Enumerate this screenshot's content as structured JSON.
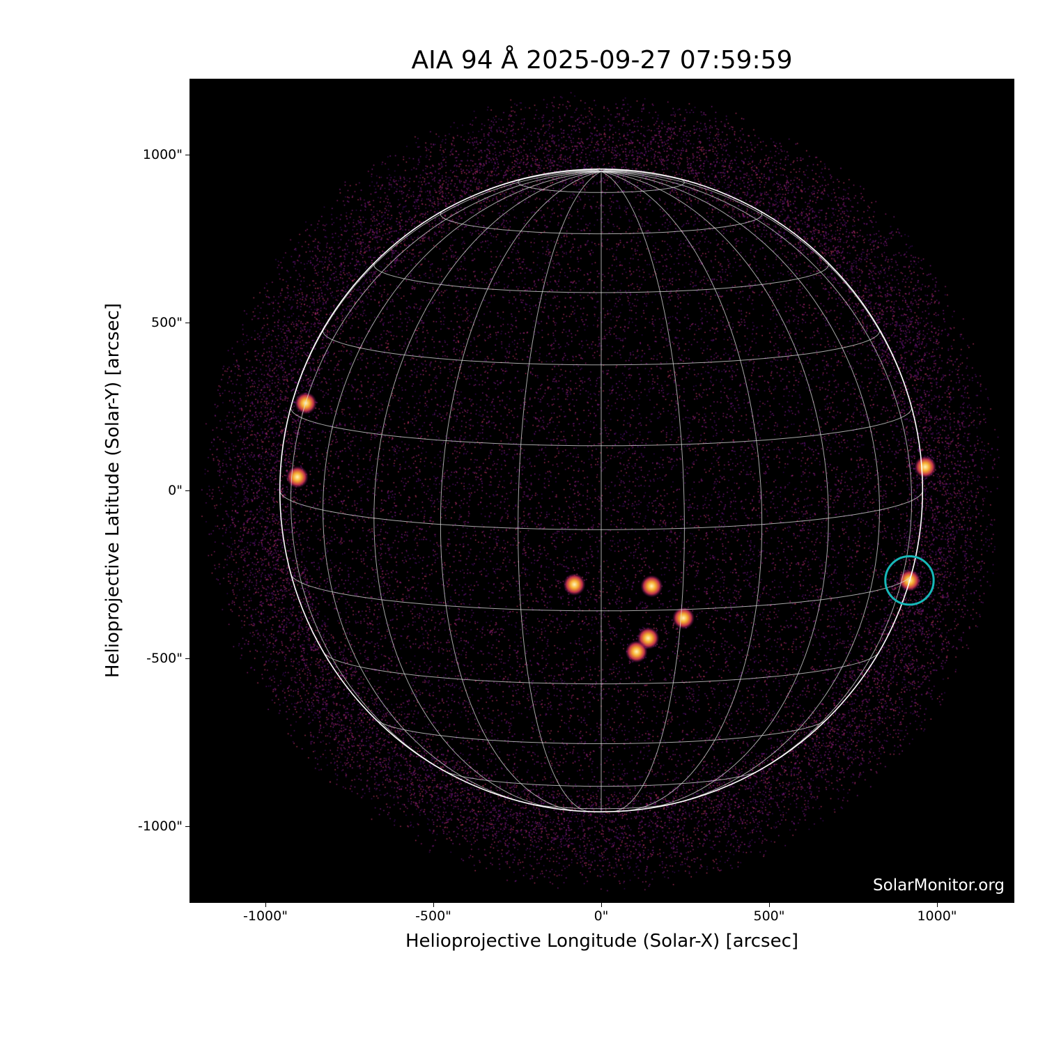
{
  "title": "AIA 94 Å 2025-09-27 07:59:59",
  "watermark": "SolarMonitor.org",
  "colors": {
    "background": "#000000",
    "grid": "#ffffff",
    "highlight_circle": "#17b8b8",
    "colormap": "inferno-like (black-purple-orange-yellow)"
  },
  "chart_data": {
    "type": "image",
    "xlabel": "Helioprojective Longitude (Solar-X) [arcsec]",
    "ylabel": "Helioprojective Latitude (Solar-Y) [arcsec]",
    "xlim": [
      -1226,
      1230
    ],
    "ylim": [
      -1230,
      1226
    ],
    "xticks": [
      {
        "v": -1000,
        "label": "-1000\""
      },
      {
        "v": -500,
        "label": "-500\""
      },
      {
        "v": 0,
        "label": "0\""
      },
      {
        "v": 500,
        "label": "500\""
      },
      {
        "v": 1000,
        "label": "1000\""
      }
    ],
    "yticks": [
      {
        "v": 1000,
        "label": "1000\""
      },
      {
        "v": 500,
        "label": "500\""
      },
      {
        "v": 0,
        "label": "0\""
      },
      {
        "v": -500,
        "label": "-500\""
      },
      {
        "v": -1000,
        "label": "-1000\""
      }
    ],
    "solar_radius_arcsec": 957,
    "grid_spacing_deg": 15,
    "b0_deg": 7,
    "highlight": {
      "x": 918,
      "y": -268,
      "radius_arcsec": 72
    },
    "bright_regions": [
      {
        "x": -880,
        "y": 260
      },
      {
        "x": -905,
        "y": 40
      },
      {
        "x": 150,
        "y": -285
      },
      {
        "x": 245,
        "y": -380
      },
      {
        "x": 140,
        "y": -440
      },
      {
        "x": 105,
        "y": -480
      },
      {
        "x": -80,
        "y": -280
      },
      {
        "x": 918,
        "y": -268
      },
      {
        "x": 965,
        "y": 70
      }
    ]
  }
}
